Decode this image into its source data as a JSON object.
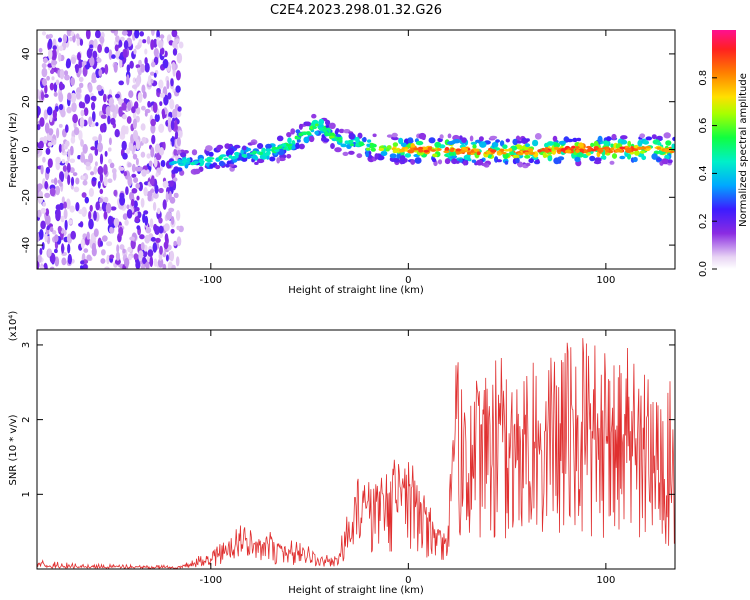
{
  "figure": {
    "title": "C2E4.2023.298.01.32.G26"
  },
  "chart_data": [
    {
      "type": "heatmap",
      "name": "spectrogram",
      "xlabel": "Height of straight line (km)",
      "ylabel": "Frequency (Hz)",
      "xlim": [
        -188,
        135
      ],
      "ylim": [
        -50,
        50
      ],
      "xticks": [
        -100,
        0,
        100
      ],
      "yticks": [
        -40,
        -20,
        0,
        20,
        40
      ],
      "colorbar": {
        "label": "Normalized spectral amplitude",
        "range": [
          0,
          1
        ],
        "ticks": [
          0.0,
          0.2,
          0.4,
          0.6,
          0.8
        ]
      },
      "ridge": {
        "x": [
          -120,
          -110,
          -100,
          -90,
          -80,
          -70,
          -60,
          -50,
          -45,
          -40,
          -35,
          -30,
          -25,
          -20,
          -10,
          0,
          20,
          40,
          60,
          80,
          100,
          120,
          135
        ],
        "freq": [
          -6,
          -5,
          -4,
          -3,
          -2,
          -1,
          2,
          8,
          10,
          6,
          4,
          3,
          2,
          1,
          0,
          0,
          0,
          -1,
          -1,
          0,
          0,
          0,
          0
        ],
        "amplitude": [
          0.4,
          0.45,
          0.5,
          0.5,
          0.5,
          0.5,
          0.55,
          0.6,
          0.55,
          0.6,
          0.55,
          0.5,
          0.55,
          0.6,
          0.7,
          0.85,
          0.9,
          0.85,
          0.85,
          0.9,
          0.9,
          0.85,
          0.8
        ]
      },
      "noise_region_x": [
        -188,
        -115
      ]
    },
    {
      "type": "line",
      "name": "snr",
      "xlabel": "Height of straight line (km)",
      "ylabel": "SNR (10 * v/v)",
      "y_multiplier": "(x10⁴)",
      "xlim": [
        -188,
        135
      ],
      "ylim": [
        0,
        3.2
      ],
      "xticks": [
        -100,
        0,
        100
      ],
      "yticks": [
        1,
        2,
        3
      ],
      "color": "#e03030",
      "series": [
        {
          "x": [
            -188,
            -170,
            -150,
            -130,
            -115,
            -105,
            -95,
            -85,
            -80,
            -75,
            -70,
            -65,
            -60,
            -55,
            -50,
            -45,
            -40,
            -35,
            -30,
            -25,
            -20,
            -15,
            -10,
            -5,
            0,
            5,
            10,
            15,
            20,
            22,
            30,
            40,
            50,
            60,
            70,
            80,
            90,
            100,
            110,
            120,
            130,
            135
          ],
          "y": [
            0.04,
            0.03,
            0.02,
            0.02,
            0.03,
            0.08,
            0.15,
            0.3,
            0.35,
            0.25,
            0.3,
            0.25,
            0.2,
            0.25,
            0.2,
            0.1,
            0.08,
            0.15,
            0.35,
            0.6,
            0.8,
            0.85,
            0.9,
            0.95,
            1.0,
            0.7,
            0.6,
            0.4,
            0.3,
            1.4,
            1.6,
            1.7,
            1.6,
            1.65,
            1.6,
            1.5,
            1.55,
            1.6,
            1.45,
            1.3,
            1.2,
            1.1
          ],
          "peak": [
            0.12,
            0.08,
            0.06,
            0.05,
            0.06,
            0.2,
            0.35,
            0.6,
            0.55,
            0.45,
            0.5,
            0.4,
            0.4,
            0.4,
            0.3,
            0.2,
            0.2,
            0.4,
            0.8,
            1.3,
            1.4,
            1.3,
            1.5,
            1.5,
            1.55,
            1.2,
            1.0,
            0.6,
            0.5,
            2.7,
            2.9,
            2.8,
            3.1,
            3.0,
            2.9,
            3.1,
            3.2,
            3.0,
            3.1,
            2.9,
            2.95,
            2.2
          ]
        }
      ]
    }
  ]
}
